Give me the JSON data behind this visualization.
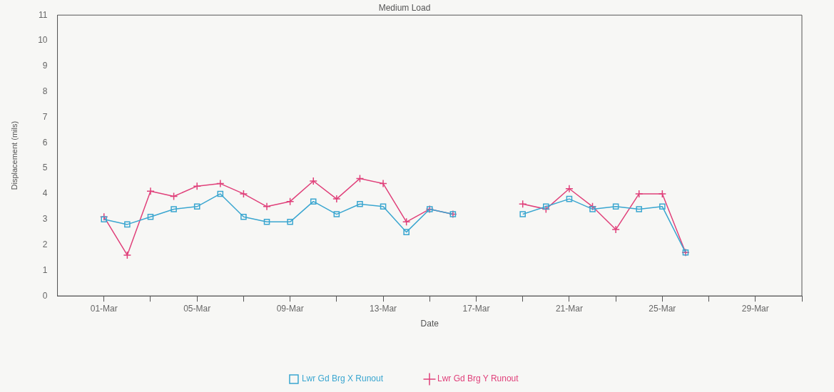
{
  "chart_data": {
    "type": "line",
    "title": "Medium Load",
    "xlabel": "Date",
    "ylabel": "Displacement (mils)",
    "x": [
      "--03-01",
      "--03-02",
      "--03-03",
      "--03-04",
      "--03-05",
      "--03-06",
      "--03-07",
      "--03-08",
      "--03-09",
      "--03-10",
      "--03-11",
      "--03-12",
      "--03-13",
      "--03-14",
      "--03-15",
      "--03-16",
      "--03-17",
      "--03-18",
      "--03-19",
      "--03-20",
      "--03-21",
      "--03-22",
      "--03-23",
      "--03-24",
      "--03-25",
      "--03-26"
    ],
    "series": [
      {
        "name": "Lwr Gd Brg X Runout",
        "color": "#3aa6d0",
        "marker": "square",
        "values": [
          3.0,
          2.8,
          3.1,
          3.4,
          3.5,
          4.0,
          3.1,
          2.9,
          2.9,
          3.7,
          3.2,
          3.6,
          3.5,
          2.5,
          3.4,
          3.2,
          null,
          null,
          3.2,
          3.5,
          3.8,
          3.4,
          3.5,
          3.4,
          3.5,
          1.7
        ]
      },
      {
        "name": "Lwr Gd Brg Y Runout",
        "color": "#e0407a",
        "marker": "cross",
        "values": [
          3.1,
          1.6,
          4.1,
          3.9,
          4.3,
          4.4,
          4.0,
          3.5,
          3.7,
          4.5,
          3.8,
          4.6,
          4.4,
          2.9,
          3.4,
          3.2,
          null,
          null,
          3.6,
          3.4,
          4.2,
          3.5,
          2.6,
          4.0,
          4.0,
          1.7
        ]
      }
    ],
    "xlim": [
      "--02-27",
      "--03-31"
    ],
    "xticks": [
      {
        "value": "--03-01",
        "label": "01-Mar"
      },
      {
        "value": "--03-03",
        "label": null
      },
      {
        "value": "--03-05",
        "label": "05-Mar"
      },
      {
        "value": "--03-07",
        "label": null
      },
      {
        "value": "--03-09",
        "label": "09-Mar"
      },
      {
        "value": "--03-11",
        "label": null
      },
      {
        "value": "--03-13",
        "label": "13-Mar"
      },
      {
        "value": "--03-15",
        "label": null
      },
      {
        "value": "--03-17",
        "label": "17-Mar"
      },
      {
        "value": "--03-19",
        "label": null
      },
      {
        "value": "--03-21",
        "label": "21-Mar"
      },
      {
        "value": "--03-23",
        "label": null
      },
      {
        "value": "--03-25",
        "label": "25-Mar"
      },
      {
        "value": "--03-27",
        "label": null
      },
      {
        "value": "--03-29",
        "label": "29-Mar"
      },
      {
        "value": "--03-31",
        "label": null
      }
    ],
    "ylim": [
      0,
      11
    ],
    "yticks": [
      0,
      1,
      2,
      3,
      4,
      5,
      6,
      7,
      8,
      9,
      10,
      11
    ],
    "grid": false,
    "legend": "bottom",
    "line_style": "solid"
  }
}
